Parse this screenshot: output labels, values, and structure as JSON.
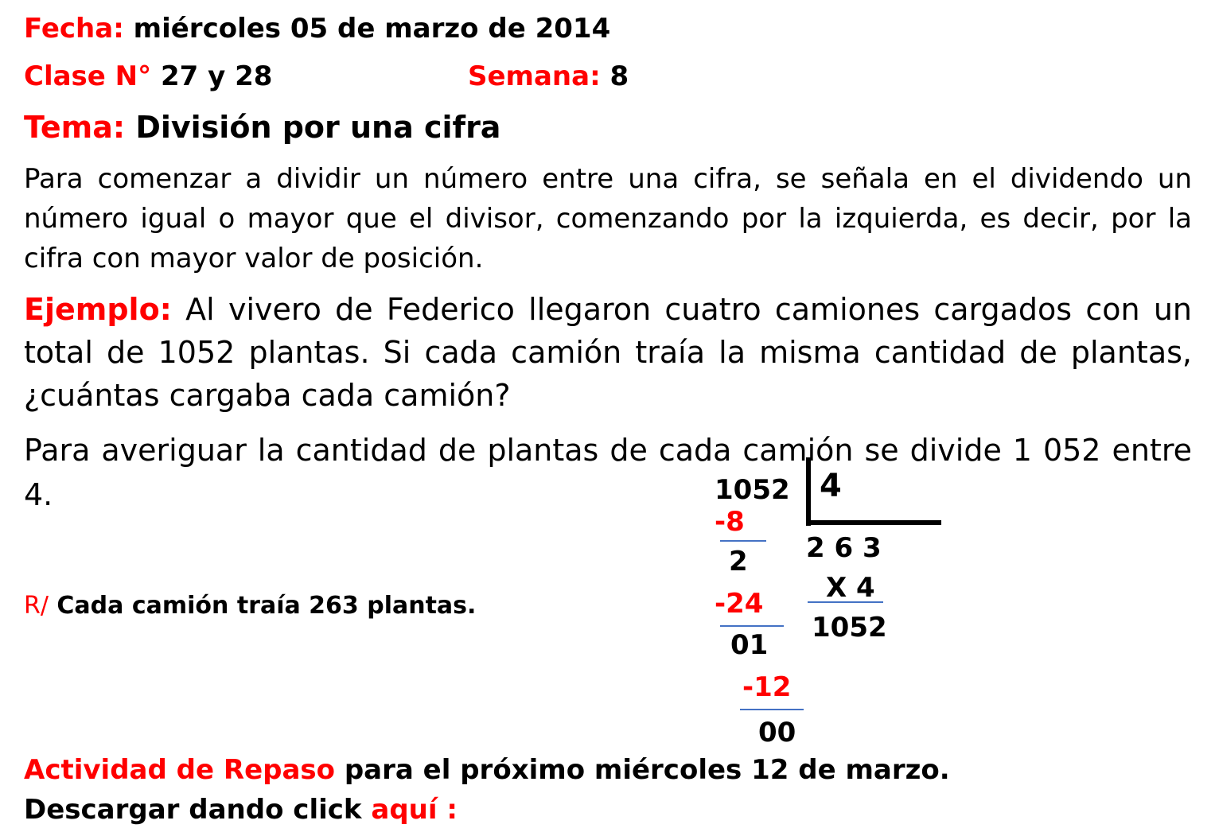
{
  "header": {
    "fecha_label": "Fecha:",
    "fecha": "miércoles 05 de marzo de 2014",
    "clase_label": "Clase N°",
    "clase": "27 y 28",
    "semana_label": "Semana:",
    "semana": "8",
    "tema_label": "Tema:",
    "tema": "División por una cifra"
  },
  "intro": "Para comenzar a dividir un número entre una cifra, se señala en el dividendo un número igual o mayor que el divisor, comenzando por la izquierda, es decir, por la cifra con mayor valor de posición.",
  "example": {
    "label": "Ejemplo:",
    "text": "Al vivero de Federico llegaron cuatro camiones cargados con un total de 1052 plantas. Si cada camión traía la misma cantidad de plantas, ¿cuántas cargaba cada camión?"
  },
  "method": "Para averiguar la cantidad de plantas de cada camión se divide 1 052 entre 4.",
  "division": {
    "dividend": "1052",
    "divisor": "4",
    "steps": [
      "-8",
      "2",
      "-24",
      "01",
      "-12",
      "00"
    ],
    "quotient": "2 6 3",
    "check_factor": "X 4",
    "check_product": "1052"
  },
  "answer": {
    "label": "R/",
    "text": "Cada camión traía 263 plantas."
  },
  "activity": {
    "label": "Actividad de Repaso",
    "text": "para el próximo miércoles 12 de marzo."
  },
  "download": {
    "text": "Descargar dando click",
    "link": "aquí :"
  }
}
